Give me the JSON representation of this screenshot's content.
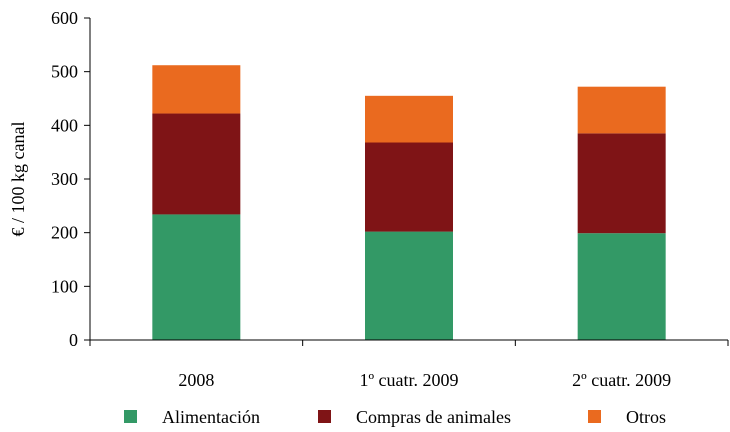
{
  "chart_data": {
    "type": "bar",
    "stacked": true,
    "categories": [
      "2008",
      "1º cuatr. 2009",
      "2º cuatr. 2009"
    ],
    "series": [
      {
        "name": "Alimentación",
        "color": "#339966",
        "values": [
          234,
          202,
          199
        ]
      },
      {
        "name": "Compras de animales",
        "color": "#7f1416",
        "values": [
          188,
          166,
          186
        ]
      },
      {
        "name": "Otros",
        "color": "#ea6a1f",
        "values": [
          90,
          87,
          87
        ]
      }
    ],
    "ylabel": "€ / 100 kg canal",
    "xlabel": "",
    "ylim": [
      0,
      600
    ],
    "yticks": [
      "0",
      "100",
      "200",
      "300",
      "400",
      "500",
      "600"
    ],
    "grid": false,
    "legend": "bottom"
  }
}
